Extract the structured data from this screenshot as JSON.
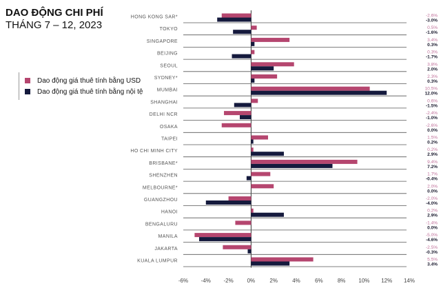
{
  "chart_data": {
    "type": "bar",
    "orientation": "horizontal",
    "title": "DAO ĐỘNG CHI PHÍ",
    "subtitle": "THÁNG 7 – 12, 2023",
    "categories": [
      "HONG KONG SAR*",
      "TOKYO",
      "SINGAPORE",
      "BEIJING",
      "SEOUL",
      "SYDNEY*",
      "MUMBAI",
      "SHANGHAI",
      "DELHI NCR",
      "OSAKA",
      "TAIPEI",
      "HO CHI MINH CITY",
      "BRISBANE*",
      "SHENZHEN",
      "MELBOURNE*",
      "GUANGZHOU",
      "HANOI",
      "BENGALURU",
      "MANILA",
      "JAKARTA",
      "KUALA LUMPUR"
    ],
    "series": [
      {
        "name": "Dao động giá thuê tính bằng USD",
        "color": "#b5466f",
        "label_color": "#c0709a",
        "values": [
          -2.6,
          0.5,
          3.4,
          0.3,
          3.8,
          2.3,
          10.5,
          0.6,
          -2.4,
          -2.6,
          1.5,
          0.2,
          9.4,
          1.7,
          2.0,
          -2.0,
          0.2,
          -1.4,
          -5.0,
          -2.5,
          5.5
        ]
      },
      {
        "name": "Dao động giá thuê tính bằng nội tệ",
        "color": "#151a3d",
        "label_color": "#1a1a2e",
        "values": [
          -3.0,
          -1.6,
          0.3,
          -1.7,
          2.0,
          0.3,
          12.0,
          -1.5,
          -1.0,
          0.0,
          0.2,
          2.9,
          7.2,
          -0.4,
          0.0,
          -4.0,
          2.9,
          0.0,
          -4.6,
          -0.3,
          3.4
        ]
      }
    ],
    "xlim": [
      -6,
      14
    ],
    "xticks": [
      "-6%",
      "-4%",
      "-2%",
      "0%",
      "2%",
      "4%",
      "6%",
      "8%",
      "10%",
      "12%",
      "14%"
    ],
    "xtick_values": [
      -6,
      -4,
      -2,
      0,
      2,
      4,
      6,
      8,
      10,
      12,
      14
    ],
    "legend_position": "left"
  }
}
